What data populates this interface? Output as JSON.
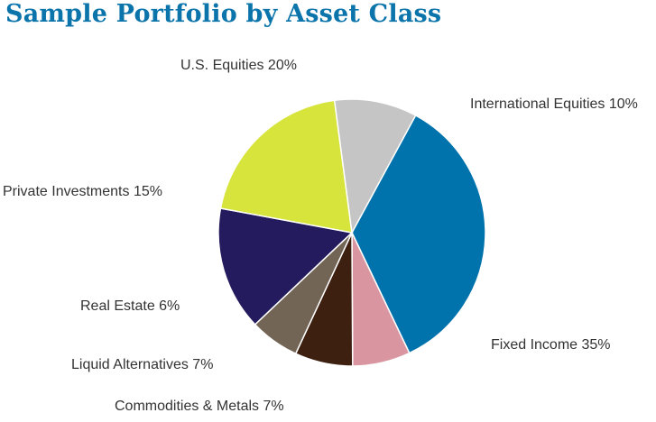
{
  "chart_data": {
    "type": "pie",
    "title": "Sample Portfolio by Asset Class",
    "title_color": "#0a74ab",
    "slices": [
      {
        "label": "Fixed Income 35%",
        "value": 35,
        "color": "#0072ac"
      },
      {
        "label": "Commodities & Metals 7%",
        "value": 7,
        "color": "#d996a1"
      },
      {
        "label": "Liquid Alternatives 7%",
        "value": 7,
        "color": "#3e2010"
      },
      {
        "label": "Real Estate 6%",
        "value": 6,
        "color": "#736556"
      },
      {
        "label": "Private Investments 15%",
        "value": 15,
        "color": "#231b5e"
      },
      {
        "label": "U.S. Equities 20%",
        "value": 20,
        "color": "#d7e43c"
      },
      {
        "label": "International Equities 10%",
        "value": 10,
        "color": "#c5c5c5"
      }
    ]
  }
}
